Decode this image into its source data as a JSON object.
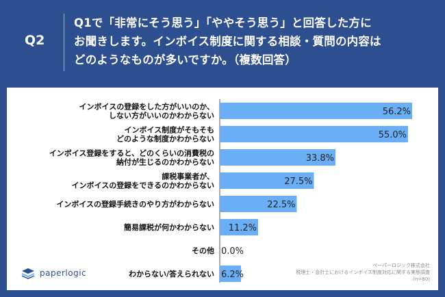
{
  "header": {
    "label": "Q2",
    "question": "Q1で「非常にそう思う」「ややそう思う」と回答した方に\nお聞きします。インボイス制度に関する相談・質問の内容は\nどのようなものが多いですか。（複数回答）"
  },
  "footer": {
    "logo_text": "paperlogic",
    "source_line1": "ペーパーロジック株式会社",
    "source_line2": "税理士・会計士におけるインボイス制度対応に関する実態調査",
    "source_line3": "(n=80)"
  },
  "colors": {
    "background": "#2d4e8f",
    "bar": "#6aaff5",
    "axis": "#555555",
    "label_text": "#111111"
  },
  "chart_data": {
    "type": "bar",
    "orientation": "horizontal",
    "categories": [
      "インボイスの登録をした方がいいのか、\nしない方がいいのかわからない",
      "インボイス制度がそもそも\nどのような制度かわからない",
      "インボイス登録をすると、どのくらいの消費税の\n納付が生じるのかわからない",
      "課税事業者が、\nインボイスの登録をできるのかわからない",
      "インボイスの登録手続きのやり方がわからない",
      "簡易課税が何かわからない",
      "その他",
      "わからない/答えられない"
    ],
    "values": [
      56.2,
      55.0,
      33.8,
      27.5,
      22.5,
      11.2,
      0.0,
      6.2
    ],
    "value_labels": [
      "56.2%",
      "55.0%",
      "33.8%",
      "27.5%",
      "22.5%",
      "11.2%",
      "0.0%",
      "6.2%"
    ],
    "xlim": [
      0,
      60
    ],
    "legend": "none",
    "grid": false
  }
}
